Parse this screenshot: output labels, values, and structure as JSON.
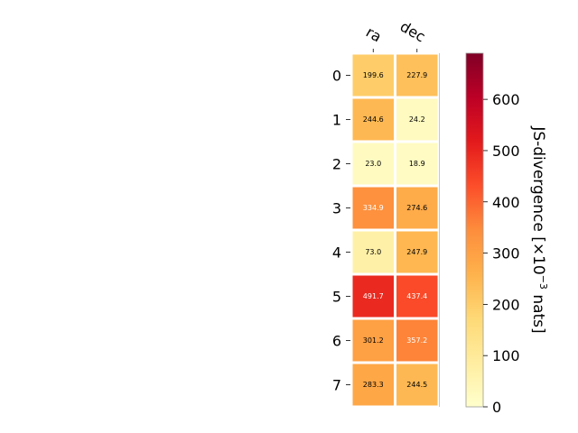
{
  "chart_data": {
    "type": "heatmap",
    "columns": [
      "ra",
      "dec"
    ],
    "rows": [
      "0",
      "1",
      "2",
      "3",
      "4",
      "5",
      "6",
      "7"
    ],
    "values": [
      [
        199.6,
        227.9
      ],
      [
        244.6,
        24.2
      ],
      [
        23.0,
        18.9
      ],
      [
        334.9,
        274.6
      ],
      [
        73.0,
        247.9
      ],
      [
        491.7,
        437.4
      ],
      [
        301.2,
        357.2
      ],
      [
        283.3,
        244.5
      ]
    ],
    "value_labels": [
      [
        "199.6",
        "227.9"
      ],
      [
        "244.6",
        "24.2"
      ],
      [
        "23.0",
        "18.9"
      ],
      [
        "334.9",
        "274.6"
      ],
      [
        "73.0",
        "247.9"
      ],
      [
        "491.7",
        "437.4"
      ],
      [
        "301.2",
        "357.2"
      ],
      [
        "283.3",
        "244.5"
      ]
    ],
    "colormap": "YlOrRd",
    "colorbar": {
      "label": "JS-divergence [×10",
      "label_exponent": "−3",
      "label_suffix": " nats]",
      "range": [
        0,
        690
      ],
      "ticks": [
        0,
        100,
        200,
        300,
        400,
        500,
        600
      ],
      "tick_labels": [
        "0",
        "100",
        "200",
        "300",
        "400",
        "500",
        "600"
      ]
    },
    "grid": false
  }
}
